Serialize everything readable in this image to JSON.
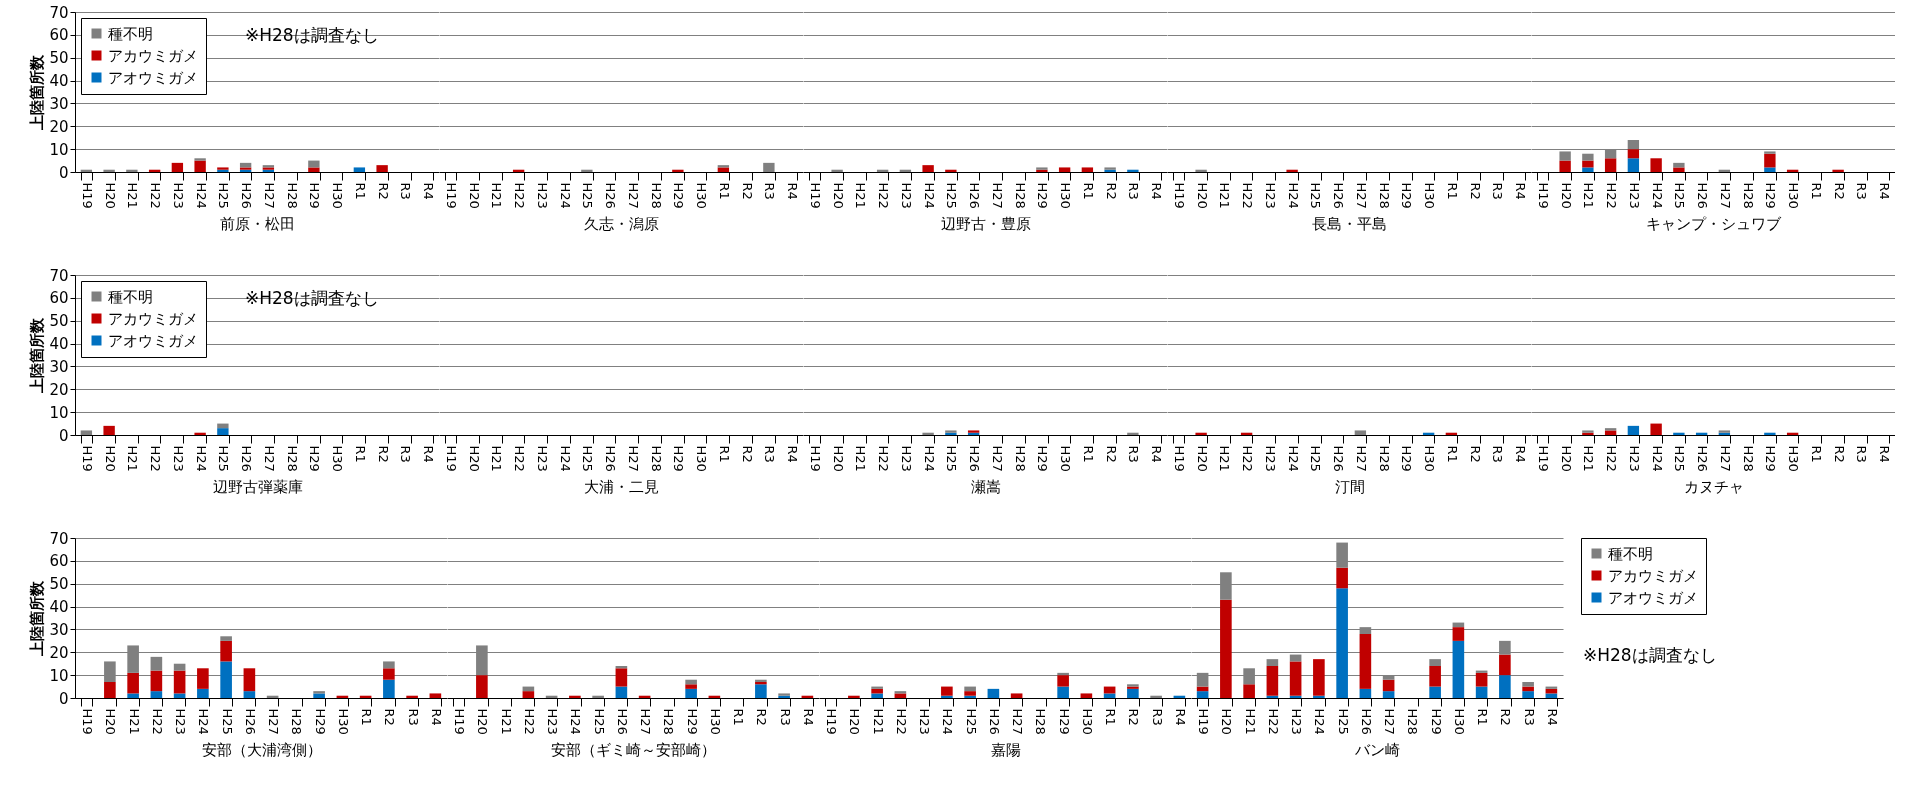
{
  "chart_data": [
    {
      "type": "bar",
      "stacked": true,
      "xlabel": "前原・松田",
      "ylabel": "上陸箇所数",
      "legend": "top left",
      "grid": "y",
      "ylim": [
        0,
        70
      ],
      "yticks": [
        0,
        10,
        20,
        30,
        40,
        50,
        60,
        70
      ],
      "annotations": [
        "※H28は調査なし"
      ],
      "categories": [
        "H19",
        "H20",
        "H21",
        "H22",
        "H23",
        "H24",
        "H25",
        "H26",
        "H27",
        "H28",
        "H29",
        "H30",
        "R1",
        "R2",
        "R3",
        "R4"
      ],
      "series": [
        {
          "name": "アオウミガメ",
          "color": "#0070c0",
          "values": [
            null,
            null,
            null,
            null,
            null,
            null,
            1,
            1,
            1,
            null,
            null,
            null,
            2,
            null,
            null,
            null
          ]
        },
        {
          "name": "アカウミガメ",
          "color": "#c00000",
          "values": [
            null,
            null,
            null,
            1,
            4,
            5,
            1,
            1,
            1,
            null,
            2,
            null,
            null,
            3,
            null,
            null
          ]
        },
        {
          "name": "種不明",
          "color": "#808080",
          "values": [
            1,
            1,
            1,
            null,
            null,
            1,
            null,
            2,
            1,
            null,
            3,
            null,
            null,
            null,
            null,
            null
          ]
        }
      ]
    },
    {
      "type": "bar",
      "stacked": true,
      "xlabel": "久志・潟原",
      "tick_labels": "x",
      "grid": "y",
      "ylim": [
        0,
        70
      ],
      "yticks": [
        0,
        10,
        20,
        30,
        40,
        50,
        60,
        70
      ],
      "categories": [
        "H19",
        "H20",
        "H21",
        "H22",
        "H23",
        "H24",
        "H25",
        "H26",
        "H27",
        "H28",
        "H29",
        "H30",
        "R1",
        "R2",
        "R3",
        "R4"
      ],
      "series": [
        {
          "color": "#0070c0",
          "values": [
            null,
            null,
            null,
            null,
            null,
            null,
            null,
            null,
            null,
            null,
            null,
            null,
            null,
            null,
            null,
            null
          ]
        },
        {
          "color": "#c00000",
          "values": [
            null,
            null,
            null,
            1,
            null,
            null,
            null,
            null,
            null,
            null,
            1,
            null,
            2,
            null,
            null,
            null
          ]
        },
        {
          "color": "#808080",
          "values": [
            null,
            null,
            null,
            null,
            null,
            null,
            1,
            null,
            null,
            null,
            null,
            null,
            1,
            null,
            4,
            null
          ]
        }
      ]
    },
    {
      "type": "bar",
      "stacked": true,
      "xlabel": "辺野古・豊原",
      "tick_labels": "x",
      "grid": "y",
      "ylim": [
        0,
        70
      ],
      "yticks": [
        0,
        10,
        20,
        30,
        40,
        50,
        60,
        70
      ],
      "categories": [
        "H19",
        "H20",
        "H21",
        "H22",
        "H23",
        "H24",
        "H25",
        "H26",
        "H27",
        "H28",
        "H29",
        "H30",
        "R1",
        "R2",
        "R3",
        "R4"
      ],
      "series": [
        {
          "color": "#0070c0",
          "values": [
            null,
            null,
            null,
            null,
            null,
            null,
            null,
            null,
            null,
            null,
            null,
            null,
            null,
            1,
            1,
            null
          ]
        },
        {
          "color": "#c00000",
          "values": [
            null,
            null,
            null,
            null,
            null,
            3,
            1,
            null,
            null,
            null,
            1,
            2,
            2,
            null,
            null,
            null
          ]
        },
        {
          "color": "#808080",
          "values": [
            null,
            1,
            null,
            1,
            1,
            null,
            null,
            null,
            null,
            null,
            1,
            null,
            null,
            1,
            null,
            null
          ]
        }
      ]
    },
    {
      "type": "bar",
      "stacked": true,
      "xlabel": "長島・平島",
      "tick_labels": "x",
      "grid": "y",
      "ylim": [
        0,
        70
      ],
      "yticks": [
        0,
        10,
        20,
        30,
        40,
        50,
        60,
        70
      ],
      "categories": [
        "H19",
        "H20",
        "H21",
        "H22",
        "H23",
        "H24",
        "H25",
        "H26",
        "H27",
        "H28",
        "H29",
        "H30",
        "R1",
        "R2",
        "R3",
        "R4"
      ],
      "series": [
        {
          "color": "#0070c0",
          "values": [
            null,
            null,
            null,
            null,
            null,
            null,
            null,
            null,
            null,
            null,
            null,
            null,
            null,
            null,
            null,
            null
          ]
        },
        {
          "color": "#c00000",
          "values": [
            null,
            null,
            null,
            null,
            null,
            1,
            null,
            null,
            null,
            null,
            null,
            null,
            null,
            null,
            null,
            null
          ]
        },
        {
          "color": "#808080",
          "values": [
            null,
            1,
            null,
            null,
            null,
            null,
            null,
            null,
            null,
            null,
            null,
            null,
            null,
            null,
            null,
            null
          ]
        }
      ]
    },
    {
      "type": "bar",
      "stacked": true,
      "xlabel": "キャンプ・シュワブ",
      "tick_labels": "x",
      "grid": "y",
      "ylim": [
        0,
        70
      ],
      "yticks": [
        0,
        10,
        20,
        30,
        40,
        50,
        60,
        70
      ],
      "categories": [
        "H19",
        "H20",
        "H21",
        "H22",
        "H23",
        "H24",
        "H25",
        "H26",
        "H27",
        "H28",
        "H29",
        "H30",
        "R1",
        "R2",
        "R3",
        "R4"
      ],
      "series": [
        {
          "color": "#0070c0",
          "values": [
            null,
            null,
            2,
            null,
            6,
            null,
            null,
            null,
            null,
            null,
            2,
            null,
            null,
            null,
            null,
            null
          ]
        },
        {
          "color": "#c00000",
          "values": [
            null,
            5,
            3,
            6,
            4,
            6,
            2,
            null,
            null,
            null,
            6,
            1,
            null,
            1,
            null,
            null
          ]
        },
        {
          "color": "#808080",
          "values": [
            null,
            4,
            3,
            4,
            4,
            null,
            2,
            null,
            1,
            null,
            1,
            null,
            null,
            null,
            null,
            null
          ]
        }
      ]
    },
    {
      "type": "bar",
      "stacked": true,
      "xlabel": "辺野古弾薬庫",
      "ylabel": "上陸箇所数",
      "legend": "top left",
      "grid": "y",
      "ylim": [
        0,
        70
      ],
      "yticks": [
        0,
        10,
        20,
        30,
        40,
        50,
        60,
        70
      ],
      "annotations": [
        "※H28は調査なし"
      ],
      "categories": [
        "H19",
        "H20",
        "H21",
        "H22",
        "H23",
        "H24",
        "H25",
        "H26",
        "H27",
        "H28",
        "H29",
        "H30",
        "R1",
        "R2",
        "R3",
        "R4"
      ],
      "series": [
        {
          "name": "アオウミガメ",
          "color": "#0070c0",
          "values": [
            null,
            null,
            null,
            null,
            null,
            null,
            3,
            null,
            null,
            null,
            null,
            null,
            null,
            null,
            null,
            null
          ]
        },
        {
          "name": "アカウミガメ",
          "color": "#c00000",
          "values": [
            null,
            4,
            null,
            null,
            null,
            1,
            null,
            null,
            null,
            null,
            null,
            null,
            null,
            null,
            null,
            null
          ]
        },
        {
          "name": "種不明",
          "color": "#808080",
          "values": [
            2,
            null,
            null,
            null,
            null,
            null,
            2,
            null,
            null,
            null,
            null,
            null,
            null,
            null,
            null,
            null
          ]
        }
      ]
    },
    {
      "type": "bar",
      "stacked": true,
      "xlabel": "大浦・二見",
      "tick_labels": "x",
      "grid": "y",
      "ylim": [
        0,
        70
      ],
      "yticks": [
        0,
        10,
        20,
        30,
        40,
        50,
        60,
        70
      ],
      "categories": [
        "H19",
        "H20",
        "H21",
        "H22",
        "H23",
        "H24",
        "H25",
        "H26",
        "H27",
        "H28",
        "H29",
        "H30",
        "R1",
        "R2",
        "R3",
        "R4"
      ],
      "series": [
        {
          "color": "#0070c0",
          "values": [
            null,
            null,
            null,
            null,
            null,
            null,
            null,
            null,
            null,
            null,
            null,
            null,
            null,
            null,
            null,
            null
          ]
        },
        {
          "color": "#c00000",
          "values": [
            null,
            null,
            null,
            null,
            null,
            null,
            null,
            null,
            null,
            null,
            null,
            null,
            null,
            null,
            null,
            null
          ]
        },
        {
          "color": "#808080",
          "values": [
            null,
            null,
            null,
            null,
            null,
            null,
            null,
            null,
            null,
            null,
            null,
            null,
            null,
            null,
            null,
            null
          ]
        }
      ]
    },
    {
      "type": "bar",
      "stacked": true,
      "xlabel": "瀬嵩",
      "tick_labels": "x",
      "grid": "y",
      "ylim": [
        0,
        70
      ],
      "yticks": [
        0,
        10,
        20,
        30,
        40,
        50,
        60,
        70
      ],
      "categories": [
        "H19",
        "H20",
        "H21",
        "H22",
        "H23",
        "H24",
        "H25",
        "H26",
        "H27",
        "H28",
        "H29",
        "H30",
        "R1",
        "R2",
        "R3",
        "R4"
      ],
      "series": [
        {
          "color": "#0070c0",
          "values": [
            null,
            null,
            null,
            null,
            null,
            null,
            1,
            1,
            null,
            null,
            null,
            null,
            null,
            null,
            null,
            null
          ]
        },
        {
          "color": "#c00000",
          "values": [
            null,
            null,
            null,
            null,
            null,
            null,
            null,
            1,
            null,
            null,
            null,
            null,
            null,
            null,
            null,
            null
          ]
        },
        {
          "color": "#808080",
          "values": [
            null,
            null,
            null,
            null,
            null,
            1,
            1,
            null,
            null,
            null,
            null,
            null,
            null,
            null,
            1,
            null
          ]
        }
      ]
    },
    {
      "type": "bar",
      "stacked": true,
      "xlabel": "汀間",
      "tick_labels": "x",
      "grid": "y",
      "ylim": [
        0,
        70
      ],
      "yticks": [
        0,
        10,
        20,
        30,
        40,
        50,
        60,
        70
      ],
      "categories": [
        "H19",
        "H20",
        "H21",
        "H22",
        "H23",
        "H24",
        "H25",
        "H26",
        "H27",
        "H28",
        "H29",
        "H30",
        "R1",
        "R2",
        "R3",
        "R4"
      ],
      "series": [
        {
          "color": "#0070c0",
          "values": [
            null,
            null,
            null,
            null,
            null,
            null,
            null,
            null,
            null,
            null,
            null,
            1,
            null,
            null,
            null,
            null
          ]
        },
        {
          "color": "#c00000",
          "values": [
            null,
            1,
            null,
            1,
            null,
            null,
            null,
            null,
            null,
            null,
            null,
            null,
            1,
            null,
            null,
            null
          ]
        },
        {
          "color": "#808080",
          "values": [
            null,
            null,
            null,
            null,
            null,
            null,
            null,
            null,
            2,
            null,
            null,
            null,
            null,
            null,
            null,
            null
          ]
        }
      ]
    },
    {
      "type": "bar",
      "stacked": true,
      "xlabel": "カヌチャ",
      "tick_labels": "x",
      "grid": "y",
      "ylim": [
        0,
        70
      ],
      "yticks": [
        0,
        10,
        20,
        30,
        40,
        50,
        60,
        70
      ],
      "categories": [
        "H19",
        "H20",
        "H21",
        "H22",
        "H23",
        "H24",
        "H25",
        "H26",
        "H27",
        "H28",
        "H29",
        "H30",
        "R1",
        "R2",
        "R3",
        "R4"
      ],
      "series": [
        {
          "color": "#0070c0",
          "values": [
            null,
            null,
            null,
            null,
            4,
            null,
            1,
            1,
            1,
            null,
            1,
            null,
            null,
            null,
            null,
            null
          ]
        },
        {
          "color": "#c00000",
          "values": [
            null,
            null,
            1,
            2,
            null,
            5,
            null,
            null,
            null,
            null,
            null,
            1,
            null,
            null,
            null,
            null
          ]
        },
        {
          "color": "#808080",
          "values": [
            null,
            null,
            1,
            1,
            null,
            null,
            null,
            null,
            1,
            null,
            null,
            null,
            null,
            null,
            null,
            null
          ]
        }
      ]
    },
    {
      "type": "bar",
      "stacked": true,
      "xlabel": "安部（大浦湾側）",
      "ylabel": "上陸箇所数",
      "grid": "y",
      "ylim": [
        0,
        70
      ],
      "yticks": [
        0,
        10,
        20,
        30,
        40,
        50,
        60,
        70
      ],
      "categories": [
        "H19",
        "H20",
        "H21",
        "H22",
        "H23",
        "H24",
        "H25",
        "H26",
        "H27",
        "H28",
        "H29",
        "H30",
        "R1",
        "R2",
        "R3",
        "R4"
      ],
      "series": [
        {
          "color": "#0070c0",
          "values": [
            null,
            null,
            2,
            3,
            2,
            4,
            16,
            3,
            null,
            null,
            2,
            null,
            null,
            8,
            null,
            null
          ]
        },
        {
          "color": "#c00000",
          "values": [
            null,
            7,
            9,
            9,
            10,
            9,
            9,
            10,
            null,
            null,
            null,
            1,
            1,
            5,
            1,
            2
          ]
        },
        {
          "color": "#808080",
          "values": [
            null,
            9,
            12,
            6,
            3,
            null,
            2,
            null,
            1,
            null,
            1,
            null,
            null,
            3,
            null,
            null
          ]
        }
      ]
    },
    {
      "type": "bar",
      "stacked": true,
      "xlabel": "安部（ギミ崎～安部崎）",
      "tick_labels": "x",
      "grid": "y",
      "ylim": [
        0,
        70
      ],
      "yticks": [
        0,
        10,
        20,
        30,
        40,
        50,
        60,
        70
      ],
      "categories": [
        "H19",
        "H20",
        "H21",
        "H22",
        "H23",
        "H24",
        "H25",
        "H26",
        "H27",
        "H28",
        "H29",
        "H30",
        "R1",
        "R2",
        "R3",
        "R4"
      ],
      "series": [
        {
          "color": "#0070c0",
          "values": [
            null,
            null,
            null,
            null,
            null,
            null,
            null,
            5,
            null,
            null,
            4,
            null,
            null,
            6,
            1,
            null
          ]
        },
        {
          "color": "#c00000",
          "values": [
            null,
            10,
            null,
            3,
            null,
            1,
            null,
            8,
            1,
            null,
            2,
            1,
            null,
            1,
            null,
            1
          ]
        },
        {
          "color": "#808080",
          "values": [
            null,
            13,
            null,
            2,
            1,
            null,
            1,
            1,
            null,
            null,
            2,
            null,
            null,
            1,
            1,
            null
          ]
        }
      ]
    },
    {
      "type": "bar",
      "stacked": true,
      "xlabel": "嘉陽",
      "tick_labels": "x",
      "grid": "y",
      "ylim": [
        0,
        70
      ],
      "yticks": [
        0,
        10,
        20,
        30,
        40,
        50,
        60,
        70
      ],
      "categories": [
        "H19",
        "H20",
        "H21",
        "H22",
        "H23",
        "H24",
        "H25",
        "H26",
        "H27",
        "H28",
        "H29",
        "H30",
        "R1",
        "R2",
        "R3",
        "R4"
      ],
      "series": [
        {
          "color": "#0070c0",
          "values": [
            null,
            null,
            2,
            null,
            null,
            1,
            1,
            4,
            null,
            null,
            5,
            null,
            2,
            4,
            null,
            1
          ]
        },
        {
          "color": "#c00000",
          "values": [
            null,
            1,
            2,
            2,
            null,
            4,
            2,
            null,
            2,
            null,
            5,
            2,
            3,
            1,
            null,
            null
          ]
        },
        {
          "color": "#808080",
          "values": [
            null,
            null,
            1,
            1,
            null,
            null,
            2,
            null,
            null,
            null,
            1,
            null,
            null,
            1,
            1,
            null
          ]
        }
      ]
    },
    {
      "type": "bar",
      "stacked": true,
      "xlabel": "バン崎",
      "tick_labels": "x",
      "legend": "right",
      "grid": "y",
      "ylim": [
        0,
        70
      ],
      "yticks": [
        0,
        10,
        20,
        30,
        40,
        50,
        60,
        70
      ],
      "annotations": [
        "※H28は調査なし"
      ],
      "categories": [
        "H19",
        "H20",
        "H21",
        "H22",
        "H23",
        "H24",
        "H25",
        "H26",
        "H27",
        "H28",
        "H29",
        "H30",
        "R1",
        "R2",
        "R3",
        "R4"
      ],
      "series": [
        {
          "name": "アオウミガメ",
          "color": "#0070c0",
          "values": [
            3,
            null,
            null,
            1,
            1,
            1,
            48,
            4,
            3,
            null,
            5,
            25,
            5,
            10,
            3,
            2
          ]
        },
        {
          "name": "アカウミガメ",
          "color": "#c00000",
          "values": [
            2,
            43,
            6,
            13,
            15,
            16,
            9,
            24,
            5,
            null,
            9,
            6,
            6,
            9,
            2,
            2
          ]
        },
        {
          "name": "種不明",
          "color": "#808080",
          "values": [
            6,
            12,
            7,
            3,
            3,
            null,
            11,
            3,
            2,
            null,
            3,
            2,
            1,
            6,
            2,
            1
          ]
        }
      ]
    }
  ]
}
